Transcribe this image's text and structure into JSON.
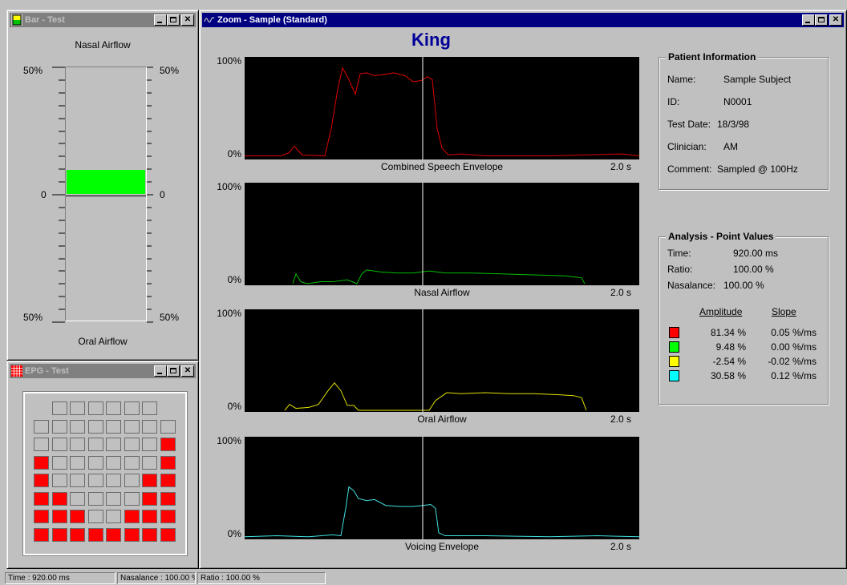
{
  "bar_window": {
    "title": "Bar - Test",
    "top_label": "Nasal Airflow",
    "bottom_label": "Oral Airflow",
    "scale_top_left": "50%",
    "scale_top_right": "50%",
    "scale_mid_left": "0",
    "scale_mid_right": "0",
    "scale_bot_left": "50%",
    "scale_bot_right": "50%",
    "bar_value_fraction": 0.19,
    "bar_color": "#00ff00"
  },
  "epg_window": {
    "title": "EPG - Test",
    "grid": [
      [
        null,
        0,
        0,
        0,
        0,
        0,
        0,
        null
      ],
      [
        0,
        0,
        0,
        0,
        0,
        0,
        0,
        0
      ],
      [
        0,
        0,
        0,
        0,
        0,
        0,
        0,
        1
      ],
      [
        1,
        0,
        0,
        0,
        0,
        0,
        0,
        1
      ],
      [
        1,
        0,
        0,
        0,
        0,
        0,
        1,
        1
      ],
      [
        1,
        1,
        0,
        0,
        0,
        0,
        1,
        1
      ],
      [
        1,
        1,
        1,
        0,
        0,
        1,
        1,
        1
      ],
      [
        1,
        1,
        1,
        1,
        1,
        1,
        1,
        1
      ]
    ],
    "on_color": "#ff0000"
  },
  "zoom_window": {
    "title": "Zoom - Sample (Standard)",
    "word": "King",
    "plots": [
      {
        "label": "Combined Speech Envelope",
        "ymax": "100%",
        "ymin": "0%",
        "duration": "2.0 s",
        "color": "#e00000"
      },
      {
        "label": "Nasal Airflow",
        "ymax": "100%",
        "ymin": "0%",
        "duration": "2.0 s",
        "color": "#00c000"
      },
      {
        "label": "Oral Airflow",
        "ymax": "100%",
        "ymin": "0%",
        "duration": "2.0 s",
        "color": "#e0e000"
      },
      {
        "label": "Voicing Envelope",
        "ymax": "100%",
        "ymin": "0%",
        "duration": "2.0 s",
        "color": "#40e0e0"
      }
    ],
    "patient": {
      "title": "Patient Information",
      "name_label": "Name:",
      "name": "Sample Subject",
      "id_label": "ID:",
      "id": "N0001",
      "date_label": "Test Date:",
      "date": "18/3/98",
      "clinician_label": "Clinician:",
      "clinician": "AM",
      "comment_label": "Comment:",
      "comment": "Sampled @ 100Hz"
    },
    "analysis": {
      "title": "Analysis - Point Values",
      "time_label": "Time:",
      "time": "920.00 ms",
      "ratio_label": "Ratio:",
      "ratio": "100.00 %",
      "nasalance_label": "Nasalance:",
      "nasalance": "100.00 %",
      "amp_header": "Amplitude",
      "slope_header": "Slope",
      "rows": [
        {
          "color": "#ff0000",
          "amplitude": "81.34 %",
          "slope": "0.05 %/ms"
        },
        {
          "color": "#00ff00",
          "amplitude": "9.48 %",
          "slope": "0.00 %/ms"
        },
        {
          "color": "#ffff00",
          "amplitude": "-2.54 %",
          "slope": "-0.02 %/ms"
        },
        {
          "color": "#00ffff",
          "amplitude": "30.58 %",
          "slope": "0.12 %/ms"
        }
      ]
    }
  },
  "status": {
    "time": "Time : 920.00 ms",
    "nasalance": "Nasalance : 100.00 %",
    "ratio": "Ratio : 100.00 %"
  }
}
